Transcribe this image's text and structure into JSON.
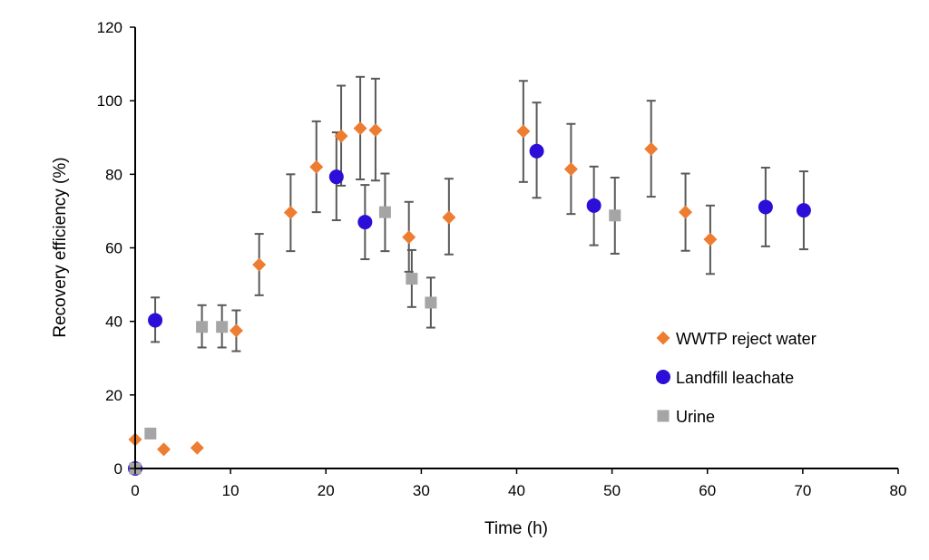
{
  "chart_data": {
    "type": "scatter",
    "title": "",
    "xlabel": "Time (h)",
    "ylabel": "Recovery efficiency (%)",
    "xlim": [
      0,
      80
    ],
    "ylim": [
      0,
      120
    ],
    "xticks": [
      0,
      10,
      20,
      30,
      40,
      50,
      60,
      70,
      80
    ],
    "yticks": [
      0,
      20,
      40,
      60,
      80,
      100,
      120
    ],
    "grid": false,
    "legend_position": "right-inside",
    "series": [
      {
        "name": "WWTP reject water",
        "marker": "diamond",
        "color": "#ED7D31",
        "points": [
          {
            "x": 0,
            "y": 7.9
          },
          {
            "x": 3.0,
            "y": 5.2
          },
          {
            "x": 6.5,
            "y": 5.6
          },
          {
            "x": 10.6,
            "y": 37.5,
            "err": [
              31.9,
              43.0
            ]
          },
          {
            "x": 13.0,
            "y": 55.4,
            "err": [
              47.1,
              63.8
            ]
          },
          {
            "x": 16.3,
            "y": 69.6,
            "err": [
              59.1,
              80.0
            ]
          },
          {
            "x": 19.0,
            "y": 82.0,
            "err": [
              69.7,
              94.4
            ]
          },
          {
            "x": 21.6,
            "y": 90.4,
            "err": [
              76.9,
              104.1
            ]
          },
          {
            "x": 23.6,
            "y": 92.5,
            "err": [
              78.6,
              106.5
            ]
          },
          {
            "x": 25.2,
            "y": 92.0,
            "err": [
              78.3,
              106.0
            ]
          },
          {
            "x": 28.7,
            "y": 62.9,
            "err": [
              53.5,
              72.5
            ]
          },
          {
            "x": 32.9,
            "y": 68.3,
            "err": [
              58.2,
              78.8
            ]
          },
          {
            "x": 40.7,
            "y": 91.7,
            "err": [
              77.9,
              105.4
            ]
          },
          {
            "x": 45.7,
            "y": 81.4,
            "err": [
              69.2,
              93.7
            ]
          },
          {
            "x": 54.1,
            "y": 86.9,
            "err": [
              73.9,
              100.0
            ]
          },
          {
            "x": 57.7,
            "y": 69.7,
            "err": [
              59.2,
              80.2
            ]
          },
          {
            "x": 60.3,
            "y": 62.3,
            "err": [
              52.9,
              71.5
            ]
          }
        ]
      },
      {
        "name": "Landfill leachate",
        "marker": "circle",
        "color": "#2B0FD8",
        "points": [
          {
            "x": 0,
            "y": 0
          },
          {
            "x": 2.1,
            "y": 40.3,
            "err": [
              34.4,
              46.5
            ]
          },
          {
            "x": 21.1,
            "y": 79.3,
            "err": [
              67.5,
              91.4
            ]
          },
          {
            "x": 24.1,
            "y": 67.0,
            "err": [
              56.9,
              77.1
            ]
          },
          {
            "x": 42.1,
            "y": 86.3,
            "err": [
              73.6,
              99.5
            ]
          },
          {
            "x": 48.1,
            "y": 71.5,
            "err": [
              60.7,
              82.1
            ]
          },
          {
            "x": 66.1,
            "y": 71.1,
            "err": [
              60.4,
              81.8
            ]
          },
          {
            "x": 70.1,
            "y": 70.2,
            "err": [
              59.6,
              80.8
            ]
          }
        ]
      },
      {
        "name": "Urine",
        "marker": "square",
        "color": "#A5A5A5",
        "points": [
          {
            "x": 0,
            "y": 0
          },
          {
            "x": 1.6,
            "y": 9.5
          },
          {
            "x": 7.0,
            "y": 38.5,
            "err": [
              32.9,
              44.4
            ]
          },
          {
            "x": 9.1,
            "y": 38.5,
            "err": [
              32.9,
              44.4
            ]
          },
          {
            "x": 26.2,
            "y": 69.7,
            "err": [
              59.1,
              80.2
            ]
          },
          {
            "x": 29.0,
            "y": 51.6,
            "err": [
              43.9,
              59.4
            ]
          },
          {
            "x": 31.0,
            "y": 45.1,
            "err": [
              38.3,
              51.9
            ]
          },
          {
            "x": 50.3,
            "y": 68.8,
            "err": [
              58.4,
              79.1
            ]
          }
        ]
      }
    ]
  }
}
